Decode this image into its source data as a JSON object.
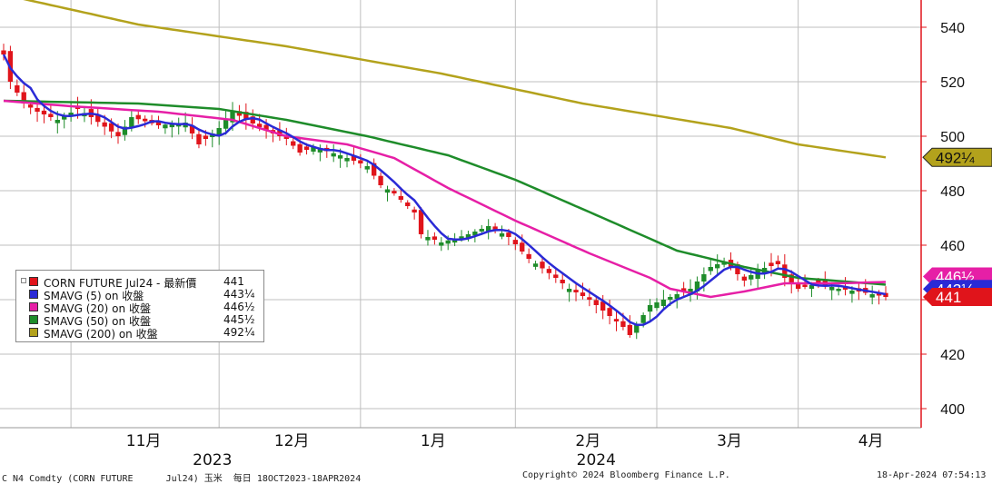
{
  "chart_data": {
    "type": "candlestick",
    "x_unit": "trading day (2023-10-18 to 2024-04-18)",
    "y_axis": {
      "range": [
        390,
        550
      ],
      "ticks": [
        400,
        420,
        440,
        460,
        480,
        500,
        520,
        540
      ],
      "tick_labels": [
        "400",
        "420",
        "440",
        "460",
        "480",
        "500",
        "520",
        "540"
      ],
      "side": "right"
    },
    "x_axis": {
      "month_labels": [
        {
          "label": "11月",
          "date": "2023-11-01"
        },
        {
          "label": "12月",
          "date": "2023-12-01"
        },
        {
          "label": "1月",
          "date": "2024-01-01"
        },
        {
          "label": "2月",
          "date": "2024-02-01"
        },
        {
          "label": "3月",
          "date": "2024-03-01"
        },
        {
          "label": "4月",
          "date": "2024-04-01"
        }
      ],
      "year_labels": [
        {
          "label": "2023",
          "date": "2023-11-30"
        },
        {
          "label": "2024",
          "date": "2024-02-19"
        }
      ]
    },
    "grid": true,
    "price_anchors": [
      [
        "2023-10-18",
        530
      ],
      [
        "2023-10-19",
        520
      ],
      [
        "2023-10-23",
        512
      ],
      [
        "2023-10-25",
        509
      ],
      [
        "2023-10-30",
        506
      ],
      [
        "2023-11-02",
        510
      ],
      [
        "2023-11-06",
        507
      ],
      [
        "2023-11-10",
        500
      ],
      [
        "2023-11-14",
        507
      ],
      [
        "2023-11-20",
        504
      ],
      [
        "2023-11-24",
        505
      ],
      [
        "2023-11-28",
        497
      ],
      [
        "2023-12-01",
        503
      ],
      [
        "2023-12-05",
        509
      ],
      [
        "2023-12-07",
        506
      ],
      [
        "2023-12-12",
        502
      ],
      [
        "2023-12-15",
        499
      ],
      [
        "2023-12-19",
        494
      ],
      [
        "2023-12-21",
        496
      ],
      [
        "2023-12-27",
        493
      ],
      [
        "2024-01-02",
        489
      ],
      [
        "2024-01-04",
        482
      ],
      [
        "2024-01-08",
        479
      ],
      [
        "2024-01-11",
        472
      ],
      [
        "2024-01-12",
        464
      ],
      [
        "2024-01-17",
        461
      ],
      [
        "2024-01-23",
        464
      ],
      [
        "2024-01-26",
        467
      ],
      [
        "2024-01-31",
        463
      ],
      [
        "2024-02-05",
        455
      ],
      [
        "2024-02-09",
        448
      ],
      [
        "2024-02-13",
        444
      ],
      [
        "2024-02-16",
        440
      ],
      [
        "2024-02-20",
        436
      ],
      [
        "2024-02-23",
        430
      ],
      [
        "2024-02-26",
        427
      ],
      [
        "2024-02-29",
        438
      ],
      [
        "2024-03-05",
        441
      ],
      [
        "2024-03-08",
        444
      ],
      [
        "2024-03-13",
        452
      ],
      [
        "2024-03-15",
        454
      ],
      [
        "2024-03-20",
        447
      ],
      [
        "2024-03-22",
        451
      ],
      [
        "2024-03-27",
        453
      ],
      [
        "2024-03-28",
        448
      ],
      [
        "2024-04-01",
        444
      ],
      [
        "2024-04-04",
        446
      ],
      [
        "2024-04-09",
        444
      ],
      [
        "2024-04-12",
        443
      ],
      [
        "2024-04-18",
        441
      ]
    ],
    "ma20_anchors": [
      [
        "2023-10-18",
        513
      ],
      [
        "2023-11-01",
        511
      ],
      [
        "2023-11-20",
        509
      ],
      [
        "2023-12-05",
        506
      ],
      [
        "2023-12-15",
        500
      ],
      [
        "2023-12-28",
        497
      ],
      [
        "2024-01-08",
        492
      ],
      [
        "2024-01-18",
        481
      ],
      [
        "2024-02-01",
        469
      ],
      [
        "2024-02-16",
        457
      ],
      [
        "2024-02-29",
        448
      ],
      [
        "2024-03-05",
        444
      ],
      [
        "2024-03-13",
        441
      ],
      [
        "2024-03-20",
        443
      ],
      [
        "2024-03-28",
        446
      ],
      [
        "2024-04-09",
        446
      ],
      [
        "2024-04-18",
        446.5
      ]
    ],
    "ma50_anchors": [
      [
        "2023-10-18",
        513
      ],
      [
        "2023-11-15",
        512
      ],
      [
        "2023-12-01",
        510
      ],
      [
        "2023-12-15",
        506
      ],
      [
        "2024-01-02",
        500
      ],
      [
        "2024-01-18",
        493
      ],
      [
        "2024-02-01",
        484
      ],
      [
        "2024-02-20",
        470
      ],
      [
        "2024-03-06",
        458
      ],
      [
        "2024-03-20",
        452
      ],
      [
        "2024-04-01",
        448
      ],
      [
        "2024-04-18",
        445.5
      ]
    ],
    "ma200_anchors": [
      [
        "2023-10-18",
        552
      ],
      [
        "2023-11-15",
        541
      ],
      [
        "2023-12-15",
        533
      ],
      [
        "2024-01-17",
        523
      ],
      [
        "2024-02-15",
        512
      ],
      [
        "2024-03-18",
        503
      ],
      [
        "2024-04-01",
        497
      ],
      [
        "2024-04-18",
        492.25
      ]
    ],
    "legend": [
      {
        "name": "CORN FUTURE Jul24 - 最新價",
        "value": "441",
        "color": "#e0141b"
      },
      {
        "name": "SMAVG (5)  on 收盤",
        "value": "443¼",
        "color": "#2a2ad6"
      },
      {
        "name": "SMAVG (20)  on 收盤",
        "value": "446½",
        "color": "#e61fa6"
      },
      {
        "name": "SMAVG (50)  on 收盤",
        "value": "445½",
        "color": "#1e8c2a"
      },
      {
        "name": "SMAVG (200)  on 收盤",
        "value": "492¼",
        "color": "#b3a21c"
      }
    ],
    "last_value_tags": [
      {
        "series": "SMAVG (200)",
        "label": "492¼",
        "value": 492.25,
        "color": "#b3a21c"
      },
      {
        "series": "SMAVG (20)",
        "label": "446½",
        "value": 446.5,
        "color": "#e61fa6"
      },
      {
        "series": "SMAVG (5)",
        "label": "443¼",
        "value": 443.25,
        "color": "#2a2ad6"
      },
      {
        "series": "CORN FUTURE Jul24",
        "label": "441",
        "value": 441,
        "color": "#e0141b"
      }
    ],
    "colors": {
      "up": "#1e8c2a",
      "down": "#e0141b",
      "axis": "#e0141b",
      "grid": "#bfbfbf"
    }
  },
  "footer": {
    "left": "C N4 Comdty (CORN FUTURE      Jul24) 玉米  每日 18OCT2023-18APR2024",
    "center": "Copyright© 2024 Bloomberg Finance L.P.",
    "right": "18-Apr-2024 07:54:13"
  }
}
